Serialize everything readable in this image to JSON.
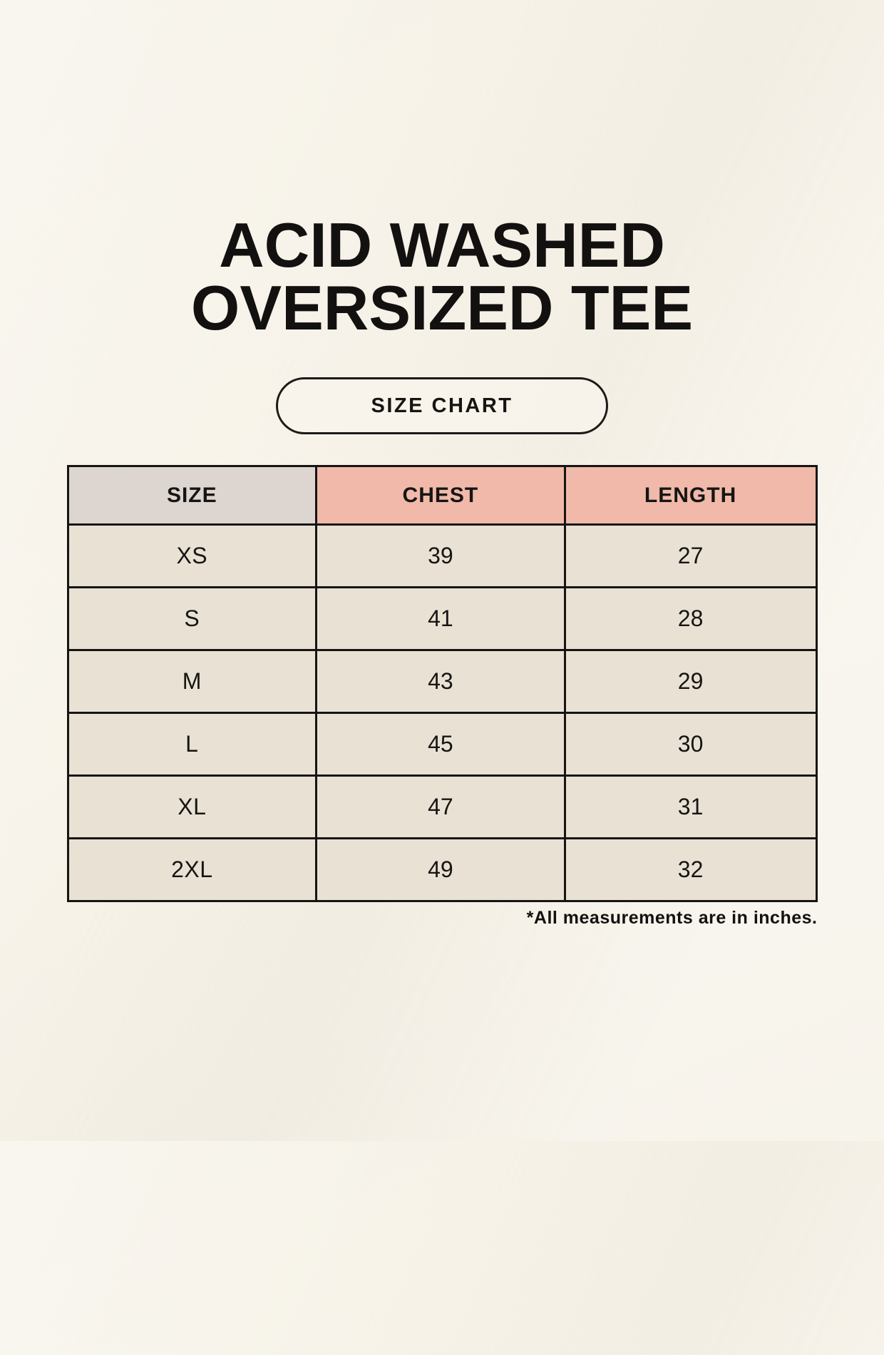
{
  "header": {
    "title_line1": "ACID WASHED",
    "title_line2": "OVERSIZED TEE",
    "button_label": "SIZE CHART"
  },
  "chart_data": {
    "type": "table",
    "title": "ACID WASHED OVERSIZED TEE — SIZE CHART",
    "columns": [
      "SIZE",
      "CHEST",
      "LENGTH"
    ],
    "rows": [
      {
        "size": "XS",
        "chest": "39",
        "length": "27"
      },
      {
        "size": "S",
        "chest": "41",
        "length": "28"
      },
      {
        "size": "M",
        "chest": "43",
        "length": "29"
      },
      {
        "size": "L",
        "chest": "45",
        "length": "30"
      },
      {
        "size": "XL",
        "chest": "47",
        "length": "31"
      },
      {
        "size": "2XL",
        "chest": "49",
        "length": "32"
      }
    ],
    "units": "inches"
  },
  "footer": {
    "note": "*All measurements are in inches."
  },
  "colors": {
    "page_background": "#f8f4eb",
    "size_column_background": "#ddd6d0",
    "header_accent_salmon": "#f0b9a9",
    "data_cell_background": "#e9e2d4",
    "border_and_text": "#161514"
  }
}
